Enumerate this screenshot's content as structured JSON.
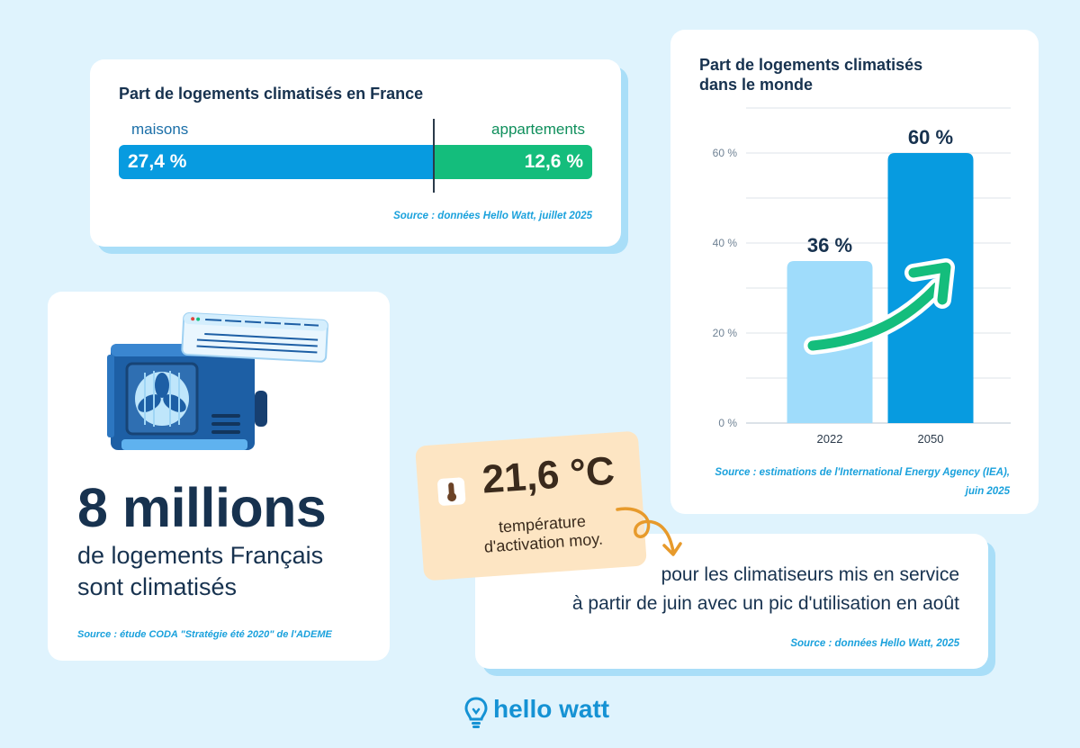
{
  "france": {
    "title": "Part de logements climatisés en France",
    "houses_label": "maisons",
    "apartments_label": "appartements",
    "houses_value": "27,4 %",
    "apartments_value": "12,6 %",
    "source": "Source : données Hello Watt, juillet 2025"
  },
  "millions": {
    "number": "8 millions",
    "desc_line1": "de logements Français",
    "desc_line2": "sont climatisés",
    "source": "Source : étude CODA \"Stratégie été 2020\" de l'ADEME"
  },
  "temperature": {
    "value": "21,6 °C",
    "label_line1": "température",
    "label_line2": "d'activation moy.",
    "info_line1": "pour les climatiseurs mis en service",
    "info_line2": "à partir de juin avec un pic d'utilisation en août",
    "source": "Source : données Hello Watt, 2025"
  },
  "world": {
    "source_line1": "Source : estimations de l'International Energy Agency (IEA),",
    "source_line2": "juin 2025"
  },
  "logo": {
    "text": "hello watt"
  },
  "colors": {
    "blue": "#079be0",
    "light_blue": "#9fdcfb",
    "green": "#14bd7c",
    "navy": "#17324f"
  },
  "chart_data": [
    {
      "type": "bar",
      "title": "Part de logements climatisés en France",
      "categories": [
        "maisons",
        "appartements"
      ],
      "values": [
        27.4,
        12.6
      ],
      "unit": "%"
    },
    {
      "type": "bar",
      "title": "Part de logements climatisés dans le monde",
      "title_line1": "Part de logements climatisés",
      "title_line2": "dans le monde",
      "categories": [
        "2022",
        "2050"
      ],
      "values": [
        36,
        60
      ],
      "value_labels": [
        "36 %",
        "60 %"
      ],
      "yticks": [
        0,
        20,
        40,
        60
      ],
      "ytick_labels": [
        "0 %",
        "20 %",
        "40 %",
        "60 %"
      ],
      "ylim": [
        0,
        70
      ],
      "grid": true,
      "xlabel": "",
      "ylabel": ""
    }
  ]
}
